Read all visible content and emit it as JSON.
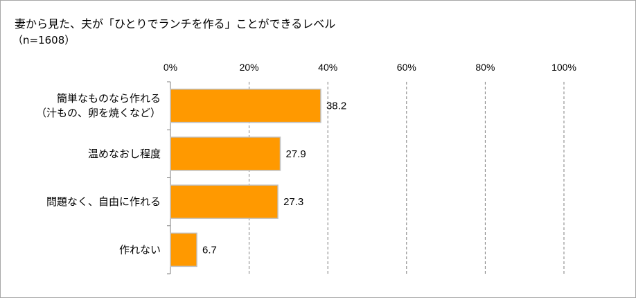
{
  "chart_data": {
    "type": "bar",
    "orientation": "horizontal",
    "title": "妻から見た、夫が「ひとりでランチを作る」ことができるレベル",
    "subtitle": "（n=1608）",
    "categories": [
      [
        "簡単なものなら作れる",
        "（汁もの、卵を焼くなど）"
      ],
      [
        "温めなおし程度"
      ],
      [
        "問題なく、自由に作れる"
      ],
      [
        "作れない"
      ]
    ],
    "values": [
      38.2,
      27.9,
      27.3,
      6.7
    ],
    "value_labels": [
      "38.2",
      "27.9",
      "27.3",
      "6.7"
    ],
    "xlim": [
      0,
      100
    ],
    "ticks": [
      0,
      20,
      40,
      60,
      80,
      100
    ],
    "tick_labels": [
      "0%",
      "20%",
      "40%",
      "60%",
      "80%",
      "100%"
    ],
    "grid": "vertical-dashed",
    "bar_color": "#ff9900",
    "bar_border_color": "#c0c0c0"
  }
}
